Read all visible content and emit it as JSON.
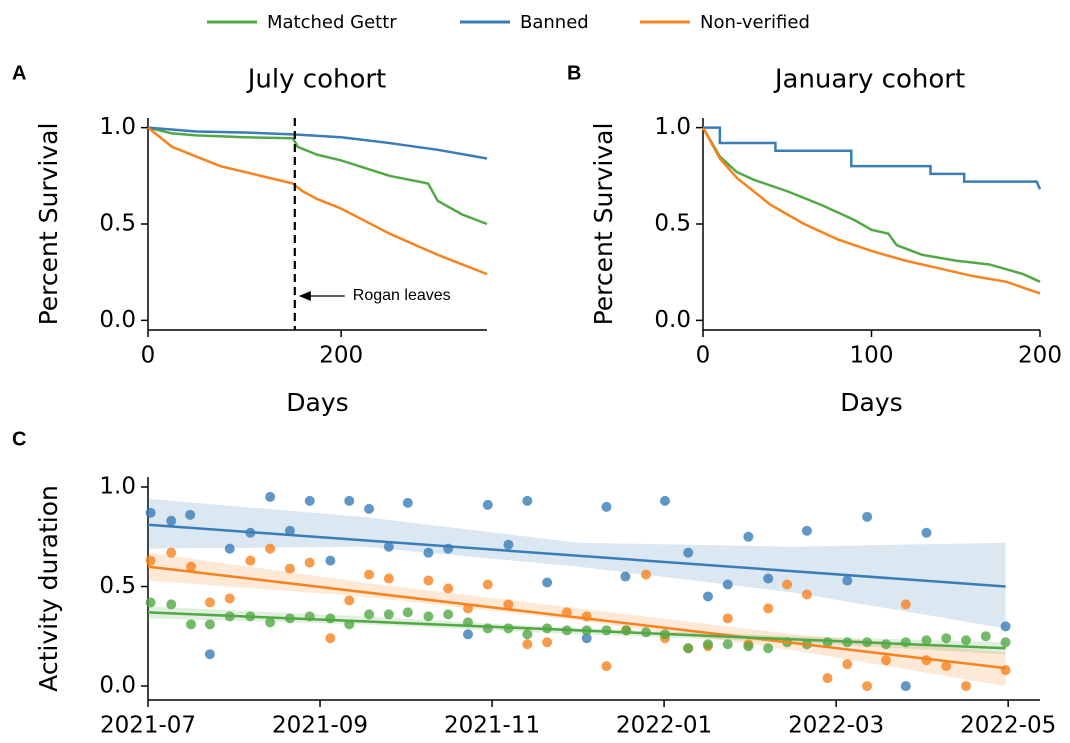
{
  "chart_data": [
    {
      "type": "line",
      "panel": "A",
      "title": "July cohort",
      "x_label": "Days",
      "y_label": "Percent Survival",
      "xlim": [
        0,
        351
      ],
      "xticks": [
        0,
        200
      ],
      "ylim": [
        -0.05,
        1.05
      ],
      "yticks": [
        {
          "value": 0,
          "label": "0.0"
        },
        {
          "value": 0.5,
          "label": "0.5"
        },
        {
          "value": 1,
          "label": "1.0"
        }
      ],
      "series": [
        {
          "name": "Matched Gettr",
          "color": "#53a846",
          "x": [
            0,
            25,
            50,
            100,
            150,
            155,
            175,
            200,
            250,
            290,
            300,
            325,
            351
          ],
          "values": [
            1.0,
            0.97,
            0.96,
            0.95,
            0.945,
            0.9,
            0.86,
            0.83,
            0.75,
            0.71,
            0.62,
            0.55,
            0.5
          ]
        },
        {
          "name": "Banned",
          "color": "#3a7db6",
          "x": [
            0,
            50,
            100,
            150,
            200,
            250,
            300,
            351
          ],
          "values": [
            1.0,
            0.98,
            0.975,
            0.965,
            0.95,
            0.92,
            0.885,
            0.84
          ]
        },
        {
          "name": "Non-verified",
          "color": "#f7821e",
          "x": [
            0,
            25,
            50,
            75,
            100,
            125,
            150,
            160,
            175,
            200,
            250,
            300,
            351
          ],
          "values": [
            1.0,
            0.9,
            0.85,
            0.8,
            0.77,
            0.74,
            0.71,
            0.67,
            0.63,
            0.58,
            0.45,
            0.34,
            0.24
          ]
        }
      ],
      "annotations": [
        {
          "text": "Rogan leaves",
          "x": 152
        }
      ]
    },
    {
      "type": "line",
      "panel": "B",
      "title": "January cohort",
      "x_label": "Days",
      "y_label": "Percent Survival",
      "xlim": [
        0,
        200
      ],
      "xticks": [
        0,
        100,
        200
      ],
      "ylim": [
        -0.05,
        1.05
      ],
      "yticks": [
        {
          "value": 0,
          "label": "0.0"
        },
        {
          "value": 0.5,
          "label": "0.5"
        },
        {
          "value": 1,
          "label": "1.0"
        }
      ],
      "series": [
        {
          "color": "#53a846",
          "x": [
            0,
            10,
            20,
            30,
            50,
            70,
            90,
            100,
            110,
            115,
            130,
            150,
            170,
            190,
            200
          ],
          "values": [
            1.0,
            0.85,
            0.77,
            0.73,
            0.67,
            0.6,
            0.52,
            0.47,
            0.45,
            0.39,
            0.34,
            0.31,
            0.29,
            0.24,
            0.2
          ]
        },
        {
          "color": "#3a7db6",
          "x": [
            0,
            10,
            10,
            43,
            43,
            88,
            88,
            135,
            135,
            155,
            155,
            198,
            200
          ],
          "values": [
            1.0,
            1.0,
            0.92,
            0.92,
            0.88,
            0.88,
            0.8,
            0.8,
            0.76,
            0.76,
            0.72,
            0.72,
            0.68
          ]
        },
        {
          "color": "#f7821e",
          "x": [
            0,
            10,
            20,
            40,
            60,
            80,
            100,
            120,
            140,
            160,
            180,
            200
          ],
          "values": [
            1.0,
            0.84,
            0.74,
            0.6,
            0.5,
            0.42,
            0.36,
            0.31,
            0.27,
            0.23,
            0.2,
            0.14
          ]
        }
      ]
    },
    {
      "type": "scatter",
      "panel": "C",
      "y_label": "Activity duration",
      "xlim": [
        0,
        10.37
      ],
      "xticks": [
        {
          "value": 0,
          "label": "2021-07"
        },
        {
          "value": 2,
          "label": "2021-09"
        },
        {
          "value": 4,
          "label": "2021-11"
        },
        {
          "value": 6,
          "label": "2022-01"
        },
        {
          "value": 8,
          "label": "2022-03"
        },
        {
          "value": 10,
          "label": "2022-05"
        }
      ],
      "ylim": [
        -0.07,
        1.05
      ],
      "yticks": [
        {
          "value": 0,
          "label": "0.0"
        },
        {
          "value": 0.5,
          "label": "0.5"
        },
        {
          "value": 1,
          "label": "1.0"
        }
      ],
      "series": [
        {
          "color": "#3a7db6",
          "x": [
            0.03,
            0.27,
            0.49,
            0.72,
            0.95,
            1.19,
            1.42,
            1.65,
            1.88,
            2.12,
            2.34,
            2.57,
            2.8,
            3.02,
            3.26,
            3.49,
            3.72,
            3.95,
            4.19,
            4.41,
            4.64,
            5.1,
            5.33,
            5.55,
            6.01,
            6.28,
            6.51,
            6.74,
            6.98,
            7.21,
            7.66,
            8.13,
            8.36,
            8.81,
            9.05,
            9.97
          ],
          "values": [
            0.87,
            0.83,
            0.86,
            0.16,
            0.69,
            0.77,
            0.95,
            0.78,
            0.93,
            0.63,
            0.93,
            0.89,
            0.7,
            0.92,
            0.67,
            0.69,
            0.26,
            0.91,
            0.71,
            0.93,
            0.52,
            0.24,
            0.9,
            0.55,
            0.93,
            0.67,
            0.45,
            0.51,
            0.75,
            0.54,
            0.78,
            0.53,
            0.85,
            0,
            0.77,
            0.3
          ],
          "trend_x": [
            0,
            9.97
          ],
          "trend_values": [
            0.81,
            0.5
          ],
          "ci_x": [
            0,
            2.5,
            5,
            7.5,
            9.97
          ],
          "ci_lower": [
            0.69,
            0.7,
            0.6,
            0.47,
            0.29
          ],
          "ci_upper": [
            0.94,
            0.85,
            0.72,
            0.7,
            0.72
          ]
        },
        {
          "color": "#f7821e",
          "x": [
            0.03,
            0.27,
            0.5,
            0.72,
            0.95,
            1.19,
            1.42,
            1.65,
            1.88,
            2.12,
            2.34,
            2.57,
            2.8,
            3.26,
            3.49,
            3.72,
            3.95,
            4.19,
            4.41,
            4.64,
            4.87,
            5.1,
            5.33,
            5.56,
            5.79,
            6.01,
            6.28,
            6.51,
            6.74,
            6.98,
            7.21,
            7.43,
            7.66,
            7.9,
            8.13,
            8.36,
            8.58,
            8.81,
            9.05,
            9.28,
            9.51,
            9.97
          ],
          "values": [
            0.63,
            0.67,
            0.6,
            0.42,
            0.44,
            0.63,
            0.69,
            0.59,
            0.62,
            0.24,
            0.43,
            0.56,
            0.54,
            0.53,
            0.49,
            0.39,
            0.51,
            0.41,
            0.21,
            0.22,
            0.37,
            0.35,
            0.1,
            0.28,
            0.56,
            0.24,
            0.19,
            0.2,
            0.34,
            0.21,
            0.39,
            0.51,
            0.46,
            0.04,
            0.11,
            0,
            0.13,
            0.41,
            0.13,
            0.1,
            0,
            0.08
          ],
          "trend_x": [
            0,
            9.97
          ],
          "trend_values": [
            0.6,
            0.09
          ],
          "ci_x": [
            0,
            2.5,
            5,
            7.5,
            9.97
          ],
          "ci_lower": [
            0.53,
            0.45,
            0.33,
            0.18,
            0.0
          ],
          "ci_upper": [
            0.67,
            0.52,
            0.39,
            0.26,
            0.17
          ]
        },
        {
          "color": "#53a846",
          "x": [
            0.03,
            0.27,
            0.5,
            0.72,
            0.95,
            1.19,
            1.42,
            1.65,
            1.88,
            2.12,
            2.34,
            2.57,
            2.8,
            3.02,
            3.26,
            3.49,
            3.72,
            3.95,
            4.19,
            4.41,
            4.64,
            4.87,
            5.1,
            5.33,
            5.56,
            5.79,
            6.01,
            6.28,
            6.51,
            6.74,
            6.98,
            7.21,
            7.43,
            7.66,
            7.9,
            8.13,
            8.36,
            8.58,
            8.81,
            9.05,
            9.28,
            9.51,
            9.74,
            9.97
          ],
          "values": [
            0.42,
            0.41,
            0.31,
            0.31,
            0.35,
            0.35,
            0.32,
            0.34,
            0.35,
            0.34,
            0.31,
            0.36,
            0.36,
            0.37,
            0.35,
            0.36,
            0.32,
            0.29,
            0.29,
            0.26,
            0.29,
            0.28,
            0.28,
            0.28,
            0.28,
            0.27,
            0.26,
            0.19,
            0.21,
            0.21,
            0.2,
            0.19,
            0.22,
            0.21,
            0.22,
            0.22,
            0.22,
            0.21,
            0.22,
            0.23,
            0.24,
            0.23,
            0.25,
            0.22
          ],
          "trend_x": [
            0,
            9.97
          ],
          "trend_values": [
            0.37,
            0.19
          ],
          "ci_x": [
            0,
            2.5,
            5,
            7.5,
            9.97
          ],
          "ci_lower": [
            0.34,
            0.31,
            0.26,
            0.22,
            0.16
          ],
          "ci_upper": [
            0.4,
            0.35,
            0.29,
            0.25,
            0.22
          ]
        }
      ]
    }
  ]
}
